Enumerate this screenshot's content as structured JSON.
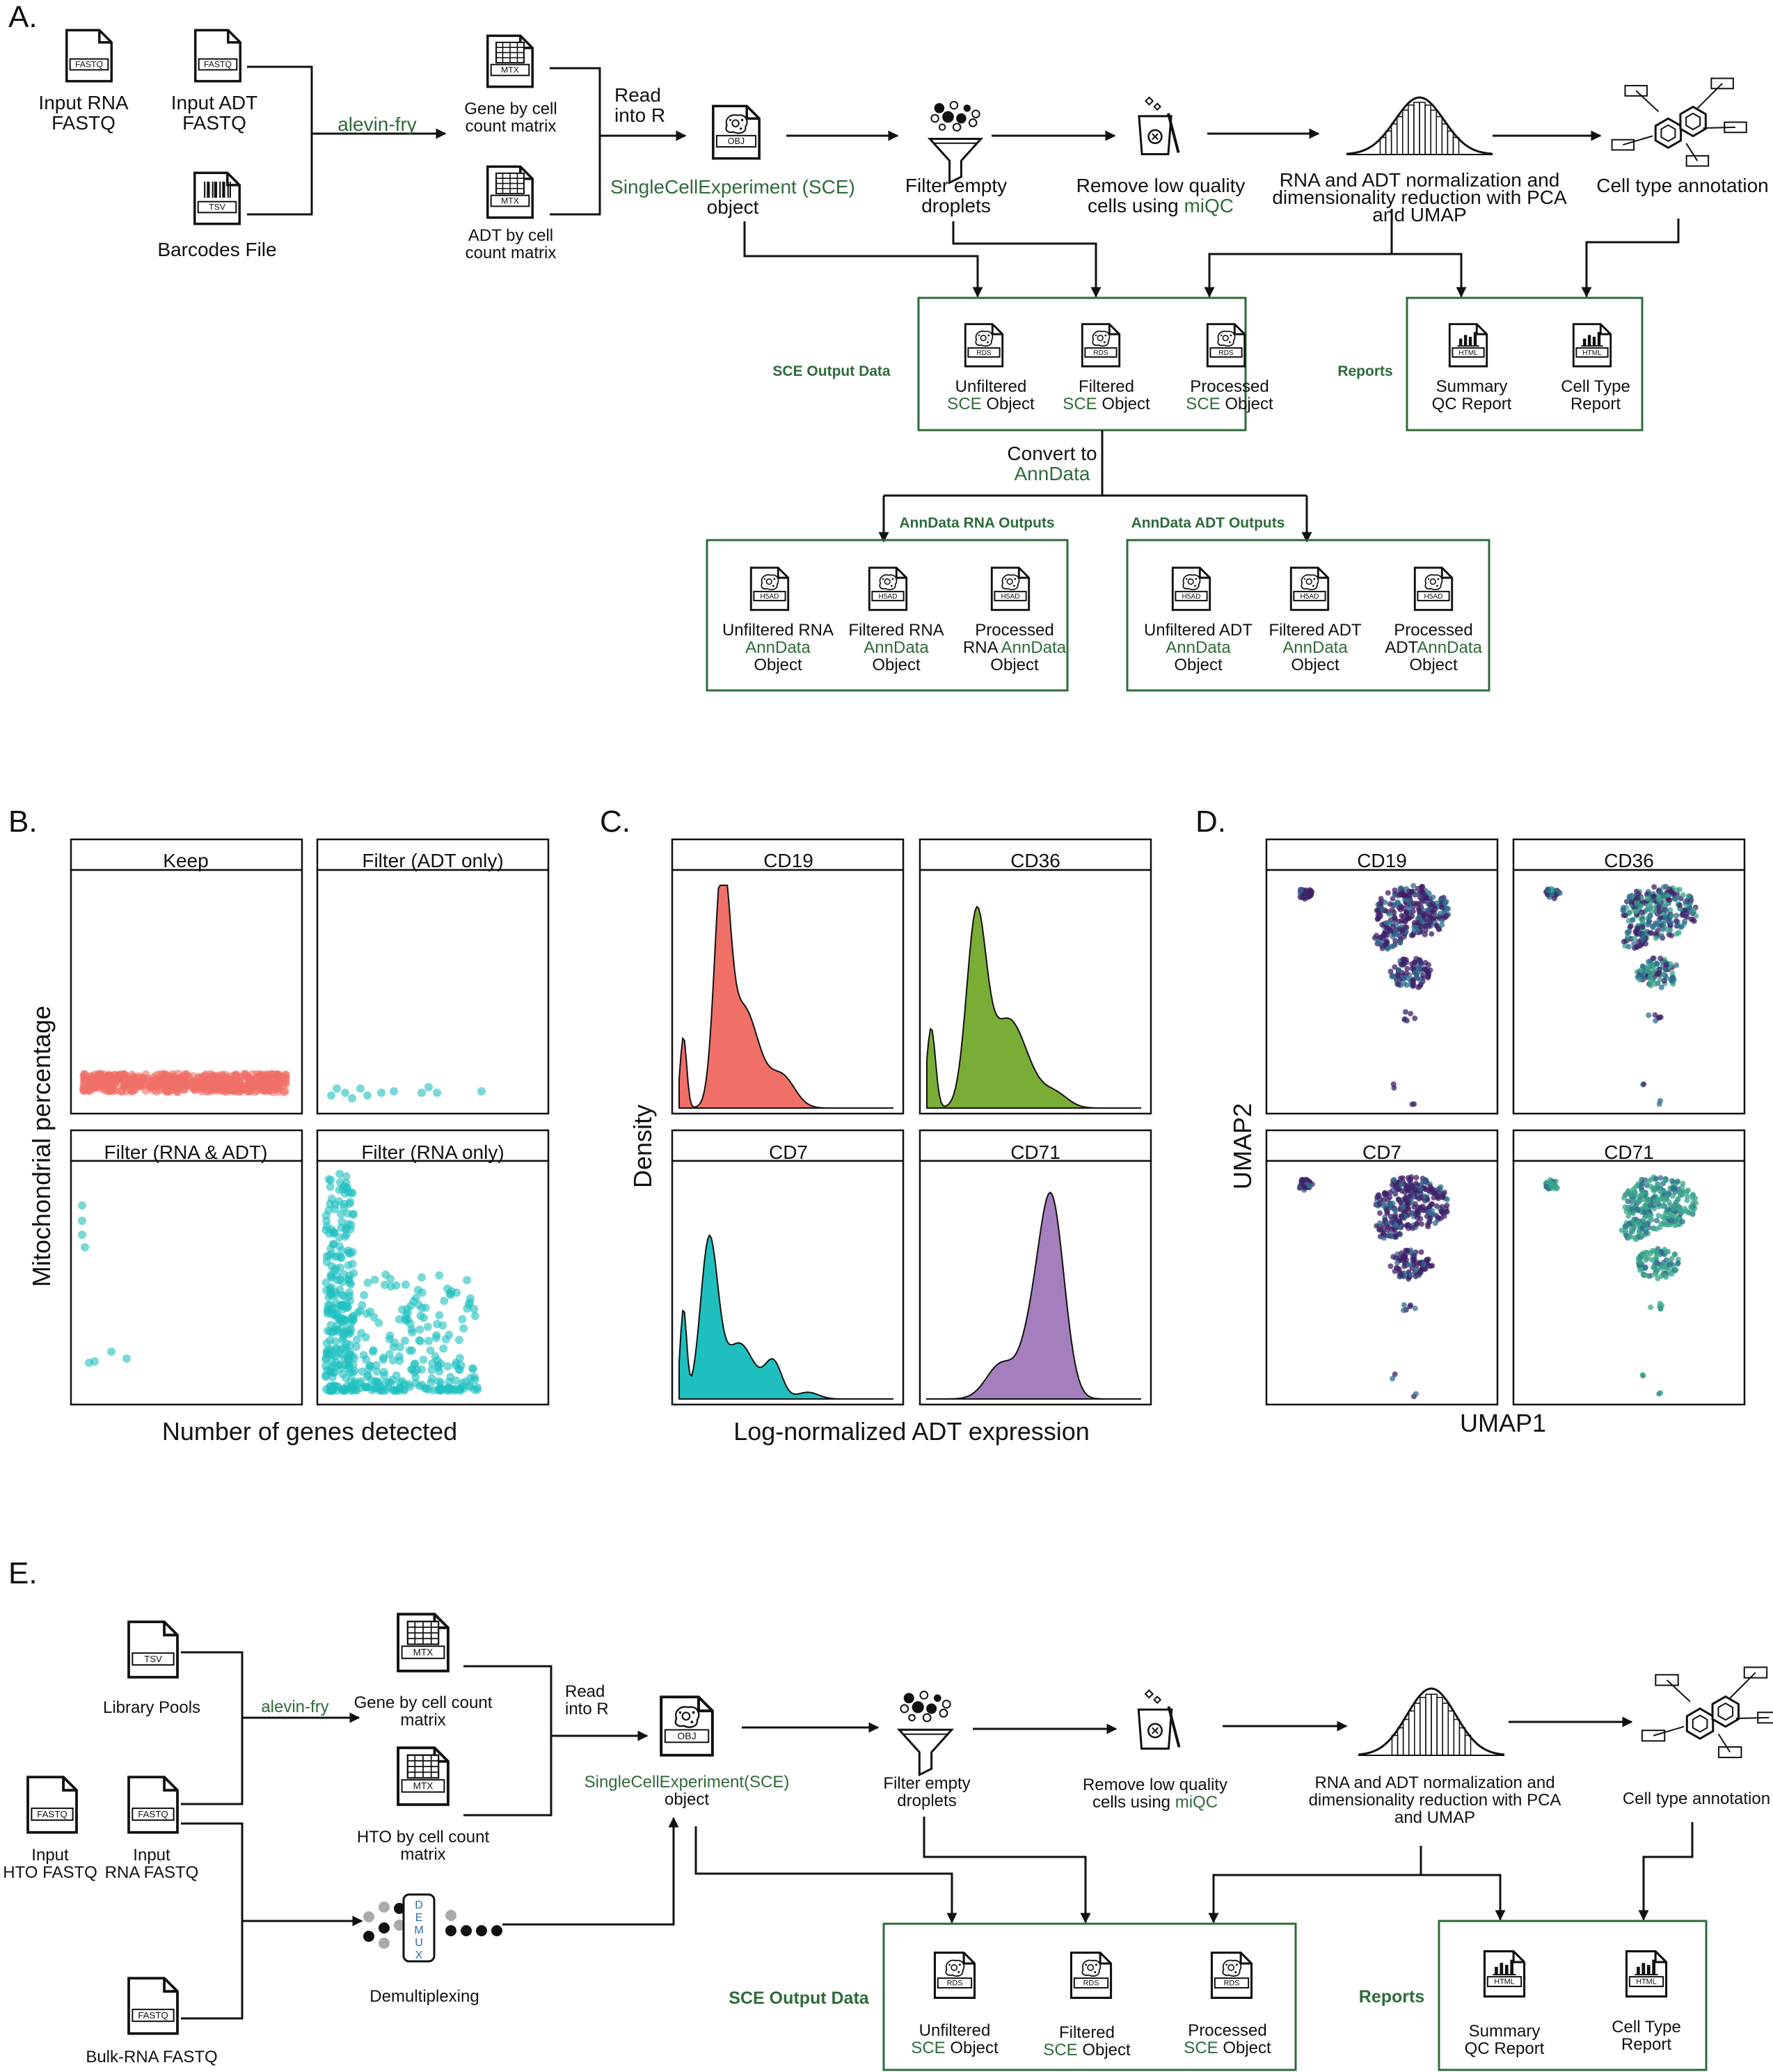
{
  "panel_letters": {
    "a": "A.",
    "b": "B.",
    "c": "C.",
    "d": "D.",
    "e": "E."
  },
  "colors": {
    "green": "#2e6b3a",
    "box_border": "#2e6b3a",
    "salmon": "#f07068",
    "teal": "#1fbfbf",
    "olive": "#7aad35",
    "purple": "#a57fbd",
    "umap_dark": "#40206a",
    "umap_mid": "#2e6f8e",
    "umap_light": "#3aa68a"
  },
  "panel_a": {
    "inputs": {
      "rna": {
        "tag": "FASTQ",
        "line1": "Input RNA",
        "line2": "FASTQ"
      },
      "adt": {
        "tag": "FASTQ",
        "line1": "Input ADT",
        "line2": "FASTQ"
      },
      "barcodes": {
        "tag": "TSV",
        "label": "Barcodes File"
      }
    },
    "tool": "alevin-fry",
    "matrices": {
      "gene": {
        "tag": "MTX",
        "line1": "Gene by cell",
        "line2": "count matrix"
      },
      "adt": {
        "tag": "MTX",
        "line1": "ADT by cell",
        "line2": "count matrix"
      }
    },
    "read_into_r": {
      "line1": "Read",
      "line2": "into R"
    },
    "sce": {
      "tag": "OBJ",
      "line1": "SingleCellExperiment (SCE)",
      "line2": "object"
    },
    "filter": {
      "line1": "Filter empty",
      "line2": "droplets"
    },
    "remove": {
      "line1": "Remove low quality",
      "line2_pre": "cells using ",
      "line2_green": "miQC"
    },
    "norm": {
      "line1": "RNA and ADT normalization and",
      "line2": "dimensionality reduction with PCA",
      "line3": "and UMAP"
    },
    "celltype": "Cell type annotation",
    "sce_output": {
      "title": "SCE Output Data",
      "items": [
        {
          "tag": "RDS",
          "line1": "Unfiltered",
          "green": "SCE",
          "rest": " Object"
        },
        {
          "tag": "RDS",
          "line1": "Filtered",
          "green": "SCE",
          "rest": " Object"
        },
        {
          "tag": "RDS",
          "line1": "Processed",
          "green": "SCE",
          "rest": " Object"
        }
      ]
    },
    "reports": {
      "title": "Reports",
      "items": [
        {
          "tag": "HTML",
          "line1": "Summary",
          "line2": "QC Report"
        },
        {
          "tag": "HTML",
          "line1": "Cell Type",
          "line2": "Report"
        }
      ]
    },
    "convert": {
      "line1": "Convert to",
      "line2": "AnnData"
    },
    "anndata_rna": {
      "title": "AnnData RNA Outputs",
      "items": [
        {
          "tag": "H5AD",
          "line1": "Unfiltered RNA",
          "line2": "AnnData",
          "line3": "Object"
        },
        {
          "tag": "H5AD",
          "line1": "Filtered RNA",
          "line2": "AnnData",
          "line3": "Object"
        },
        {
          "tag": "H5AD",
          "line1": "Processed",
          "line2_pre": "RNA ",
          "line2": "AnnData",
          "line3": "Object"
        }
      ]
    },
    "anndata_adt": {
      "title": "AnnData ADT Outputs",
      "items": [
        {
          "tag": "H5AD",
          "line1": "Unfiltered ADT",
          "line2": "AnnData",
          "line3": "Object"
        },
        {
          "tag": "H5AD",
          "line1": "Filtered ADT",
          "line2": "AnnData",
          "line3": "Object"
        },
        {
          "tag": "H5AD",
          "line1": "Processed",
          "line2_pre": "ADT",
          "line2": "AnnData",
          "line3": "Object"
        }
      ]
    }
  },
  "panel_b": {
    "xlabel": "Number of genes detected",
    "ylabel": "Mitochondrial percentage",
    "facets": [
      "Keep",
      "Filter (ADT only)",
      "Filter (RNA & ADT)",
      "Filter (RNA only)"
    ]
  },
  "panel_c": {
    "xlabel": "Log-normalized ADT expression",
    "ylabel": "Density",
    "facets": [
      "CD19",
      "CD36",
      "CD7",
      "CD71"
    ]
  },
  "panel_d": {
    "xlabel": "UMAP1",
    "ylabel": "UMAP2",
    "facets": [
      "CD19",
      "CD36",
      "CD7",
      "CD71"
    ]
  },
  "panel_e": {
    "library_pools": {
      "tag": "TSV",
      "label": "Library Pools"
    },
    "hto": {
      "tag": "FASTQ",
      "line1": "Input",
      "line2": "HTO FASTQ"
    },
    "rna": {
      "tag": "FASTQ",
      "line1": "Input",
      "line2": "RNA FASTQ"
    },
    "bulk": {
      "tag": "FASTQ",
      "label": "Bulk-RNA FASTQ"
    },
    "tool": "alevin-fry",
    "gene": {
      "tag": "MTX",
      "line1": "Gene by cell count",
      "line2": "matrix"
    },
    "hto_mat": {
      "tag": "MTX",
      "line1": "HTO by cell count",
      "line2": "matrix"
    },
    "demux": {
      "letters": [
        "D",
        "E",
        "M",
        "U",
        "X"
      ],
      "label": "Demultiplexing"
    },
    "read_into_r": {
      "line1": "Read",
      "line2": "into R"
    },
    "sce": {
      "tag": "OBJ",
      "line1": "SingleCellExperiment(SCE)",
      "line2": "object"
    },
    "filter": {
      "line1": "Filter empty",
      "line2": "droplets"
    },
    "remove": {
      "line1": "Remove low quality",
      "line2_pre": "cells using ",
      "line2_green": "miQC"
    },
    "norm": {
      "line1": "RNA and ADT normalization and",
      "line2": "dimensionality reduction with PCA",
      "line3": "and UMAP"
    },
    "celltype": "Cell type annotation",
    "sce_output": {
      "title": "SCE Output Data",
      "items": [
        {
          "tag": "RDS",
          "line1": "Unfiltered",
          "green": "SCE",
          "rest": " Object"
        },
        {
          "tag": "RDS",
          "line1": "Filtered",
          "green": "SCE",
          "rest": " Object"
        },
        {
          "tag": "RDS",
          "line1": "Processed",
          "green": "SCE",
          "rest": " Object"
        }
      ]
    },
    "reports": {
      "title": "Reports",
      "items": [
        {
          "tag": "HTML",
          "line1": "Summary",
          "line2": "QC Report"
        },
        {
          "tag": "HTML",
          "line1": "Cell Type",
          "line2": "Report"
        }
      ]
    }
  }
}
